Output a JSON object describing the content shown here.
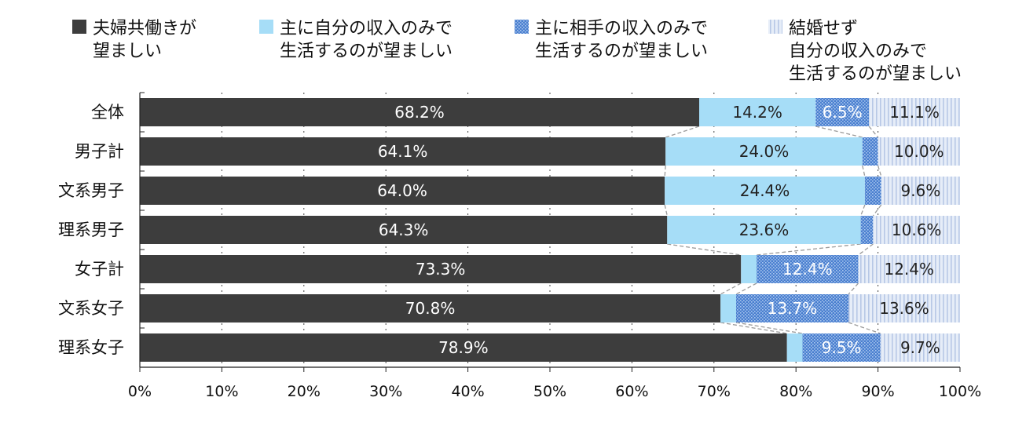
{
  "chart_data": {
    "type": "bar",
    "orientation": "horizontal",
    "stacked": true,
    "percent": true,
    "categories": [
      "全体",
      "男子計",
      "文系男子",
      "理系男子",
      "女子計",
      "文系女子",
      "理系女子"
    ],
    "series": [
      {
        "name": "夫婦共働きが望ましい",
        "legend_lines": [
          "夫婦共働きが",
          "望ましい"
        ],
        "values": [
          68.2,
          64.1,
          64.0,
          64.3,
          73.3,
          70.8,
          78.9
        ],
        "labels": [
          "68.2%",
          "64.1%",
          "64.0%",
          "64.3%",
          "73.3%",
          "70.8%",
          "78.9%"
        ],
        "color": "#3d3d3d",
        "label_color": "#ffffff",
        "pattern": "solid"
      },
      {
        "name": "主に自分の収入のみで生活するのが望ましい",
        "legend_lines": [
          "主に自分の収入のみで",
          "生活するのが望ましい"
        ],
        "values": [
          14.2,
          24.0,
          24.4,
          23.6,
          1.9,
          1.9,
          1.9
        ],
        "labels": [
          "14.2%",
          "24.0%",
          "24.4%",
          "23.6%",
          "",
          "",
          ""
        ],
        "color": "#a6ddf7",
        "label_color": "#222222",
        "pattern": "solid"
      },
      {
        "name": "主に相手の収入のみで生活するのが望ましい",
        "legend_lines": [
          "主に相手の収入のみで",
          "生活するのが望ましい"
        ],
        "values": [
          6.5,
          1.9,
          2.0,
          1.5,
          12.4,
          13.7,
          9.5
        ],
        "labels": [
          "6.5%",
          "",
          "",
          "",
          "12.4%",
          "13.7%",
          "9.5%"
        ],
        "color": "#4a7fcf",
        "label_color": "#ffffff",
        "pattern": "dots"
      },
      {
        "name": "結婚せず自分の収入のみで生活するのが望ましい",
        "legend_lines": [
          "結婚せず",
          "自分の収入のみで",
          "生活するのが望ましい"
        ],
        "values": [
          11.1,
          10.0,
          9.6,
          10.6,
          12.4,
          13.6,
          9.7
        ],
        "labels": [
          "11.1%",
          "10.0%",
          "9.6%",
          "10.6%",
          "12.4%",
          "13.6%",
          "9.7%"
        ],
        "color": "#d9e4f4",
        "label_color": "#222222",
        "pattern": "stripes"
      }
    ],
    "xlim": [
      0,
      100
    ],
    "x_ticks": [
      "0%",
      "10%",
      "20%",
      "30%",
      "40%",
      "50%",
      "60%",
      "70%",
      "80%",
      "90%",
      "100%"
    ],
    "gridlines": "dotted vertical",
    "legend_position": "top"
  }
}
